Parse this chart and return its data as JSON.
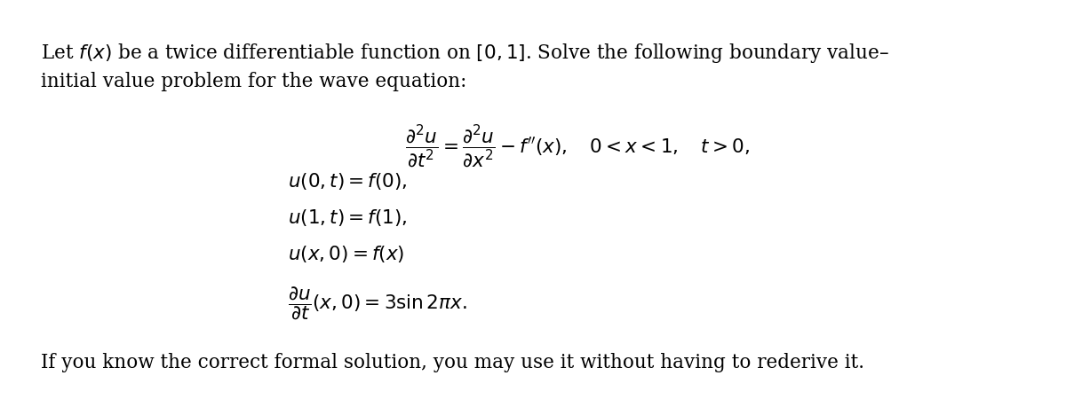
{
  "background_color": "#ffffff",
  "figsize": [
    12.0,
    4.5
  ],
  "dpi": 100,
  "text_color": "#000000",
  "font_size_body": 15.5,
  "font_size_math": 15.5,
  "intro_line1": "Let $f(x)$ be a twice differentiable function on $[0, 1]$. Solve the following boundary value–",
  "intro_line2": "initial value problem for the wave equation:",
  "pde_line": "$\\dfrac{\\partial^2 u}{\\partial t^2} = \\dfrac{\\partial^2 u}{\\partial x^2} - f''(x), \\quad 0 < x < 1, \\quad t > 0,$",
  "bc1": "$u(0, t) = f(0),$",
  "bc2": "$u(1, t) = f(1),$",
  "ic1": "$u(x, 0) = f(x)$",
  "ic2": "$\\dfrac{\\partial u}{\\partial t}(x, 0) = 3 \\sin 2\\pi x.$",
  "footer": "If you know the correct formal solution, you may use it without having to rederive it."
}
